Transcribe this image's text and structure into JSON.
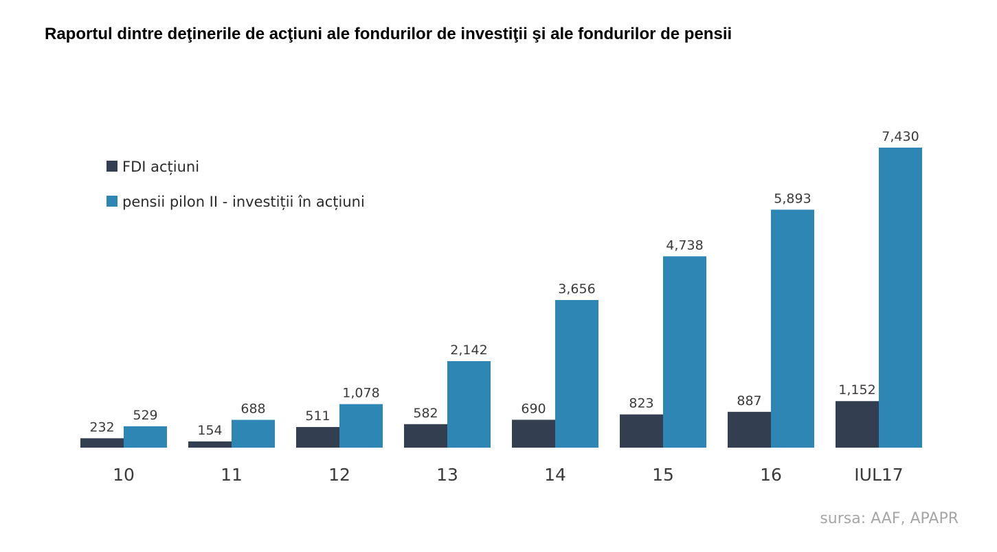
{
  "chart_data": {
    "type": "bar",
    "title": "Raportul dintre deţinerile de acţiuni ale fondurilor de investiţii şi ale fondurilor de pensii",
    "categories": [
      "10",
      "11",
      "12",
      "13",
      "14",
      "15",
      "16",
      "IUL17"
    ],
    "series": [
      {
        "name": "FDI acțiuni",
        "color": "#333e50",
        "values": [
          232,
          154,
          511,
          582,
          690,
          823,
          887,
          1152
        ],
        "labels": [
          "232",
          "154",
          "511",
          "582",
          "690",
          "823",
          "887",
          "1,152"
        ]
      },
      {
        "name": "pensii pilon II - investiții în acțiuni",
        "color": "#2e86b5",
        "values": [
          529,
          688,
          1078,
          2142,
          3656,
          4738,
          5893,
          7430
        ],
        "labels": [
          "529",
          "688",
          "1,078",
          "2,142",
          "3,656",
          "4,738",
          "5,893",
          "7,430"
        ]
      }
    ],
    "legend_position": "top-left",
    "grid": false,
    "xlabel": "",
    "ylabel": "",
    "ylim": [
      0,
      7430
    ]
  },
  "source": "sursa: AAF, APAPR"
}
